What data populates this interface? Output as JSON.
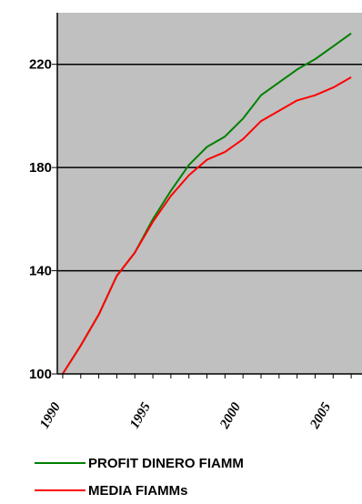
{
  "chart_data": {
    "type": "line",
    "title": "",
    "xlabel": "",
    "ylabel": "",
    "x": [
      1990,
      1991,
      1992,
      1993,
      1994,
      1995,
      1996,
      1997,
      1998,
      1999,
      2000,
      2001,
      2002,
      2003,
      2004,
      2005,
      2006
    ],
    "series": [
      {
        "name": "PROFIT DINERO FIAMM",
        "color": "#008000",
        "values": [
          100,
          111,
          123,
          138,
          147,
          160,
          171,
          181,
          188,
          192,
          199,
          208,
          213,
          218,
          222,
          227,
          232
        ]
      },
      {
        "name": "MEDIA FIAMMs",
        "color": "#ff0000",
        "values": [
          100,
          111,
          123,
          138,
          147,
          159,
          169,
          177,
          183,
          186,
          191,
          198,
          202,
          206,
          208,
          211,
          215
        ]
      }
    ],
    "xticks": [
      "1990",
      "1995",
      "2000",
      "2005"
    ],
    "yticks": [
      "100",
      "140",
      "180",
      "220"
    ],
    "ylim": [
      100,
      240
    ],
    "xlim": [
      1989.7,
      2006.6
    ],
    "grid": "horizontal",
    "legend_position": "bottom",
    "plot_background": "#c0c0c0"
  }
}
